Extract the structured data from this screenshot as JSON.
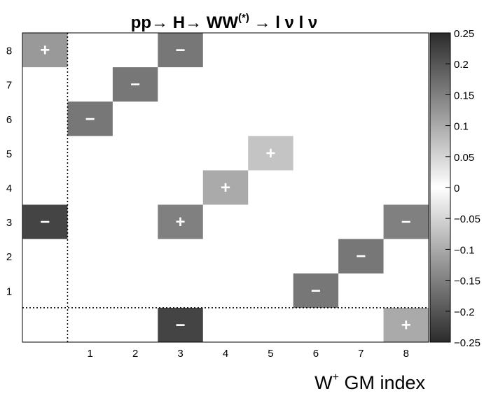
{
  "chart_data": {
    "type": "heatmap",
    "title": {
      "parts": [
        {
          "text": "pp",
          "style": "bold"
        },
        {
          "text": "→ ",
          "style": "normal"
        },
        {
          "text": "H",
          "style": "bold"
        },
        {
          "text": "→ ",
          "style": "normal"
        },
        {
          "text": "WW",
          "style": "bold"
        },
        {
          "text": "(*)",
          "style": "bold-sup"
        },
        {
          "text": " → ",
          "style": "normal"
        },
        {
          "text": "l ν l ν",
          "style": "bold"
        }
      ]
    },
    "xlabel": {
      "main": "W",
      "sup": "+",
      "rest": " GM index"
    },
    "ylabel": "",
    "x_categories": [
      "",
      "1",
      "2",
      "3",
      "4",
      "5",
      "6",
      "7",
      "8"
    ],
    "y_categories": [
      "",
      "1",
      "2",
      "3",
      "4",
      "5",
      "6",
      "7",
      "8"
    ],
    "cells": [
      {
        "x": 0,
        "y": 8,
        "value": 0.12,
        "sign": "+"
      },
      {
        "x": 3,
        "y": 8,
        "value": -0.16,
        "sign": "−"
      },
      {
        "x": 2,
        "y": 7,
        "value": -0.16,
        "sign": "−"
      },
      {
        "x": 1,
        "y": 6,
        "value": -0.16,
        "sign": "−"
      },
      {
        "x": 5,
        "y": 5,
        "value": 0.07,
        "sign": "+"
      },
      {
        "x": 4,
        "y": 4,
        "value": 0.1,
        "sign": "+"
      },
      {
        "x": 0,
        "y": 3,
        "value": -0.22,
        "sign": "−"
      },
      {
        "x": 3,
        "y": 3,
        "value": 0.15,
        "sign": "+"
      },
      {
        "x": 8,
        "y": 3,
        "value": -0.15,
        "sign": "−"
      },
      {
        "x": 7,
        "y": 2,
        "value": -0.16,
        "sign": "−"
      },
      {
        "x": 6,
        "y": 1,
        "value": -0.16,
        "sign": "−"
      },
      {
        "x": 3,
        "y": 0,
        "value": -0.22,
        "sign": "−"
      },
      {
        "x": 8,
        "y": 0,
        "value": 0.1,
        "sign": "+"
      }
    ],
    "color_scale": {
      "min": -0.25,
      "max": 0.25,
      "ticks": [
        "0.25",
        "0.2",
        "0.15",
        "0.1",
        "0.05",
        "0",
        "−0.05",
        "−0.1",
        "−0.15",
        "−0.2",
        "−0.25"
      ],
      "tick_values": [
        0.25,
        0.2,
        0.15,
        0.1,
        0.05,
        0,
        -0.05,
        -0.1,
        -0.15,
        -0.2,
        -0.25
      ],
      "dark_color": "#2b2b2b",
      "light_color": "#ffffff"
    },
    "separator_after_index": 0,
    "grid": false,
    "legend": "colorbar-right"
  }
}
